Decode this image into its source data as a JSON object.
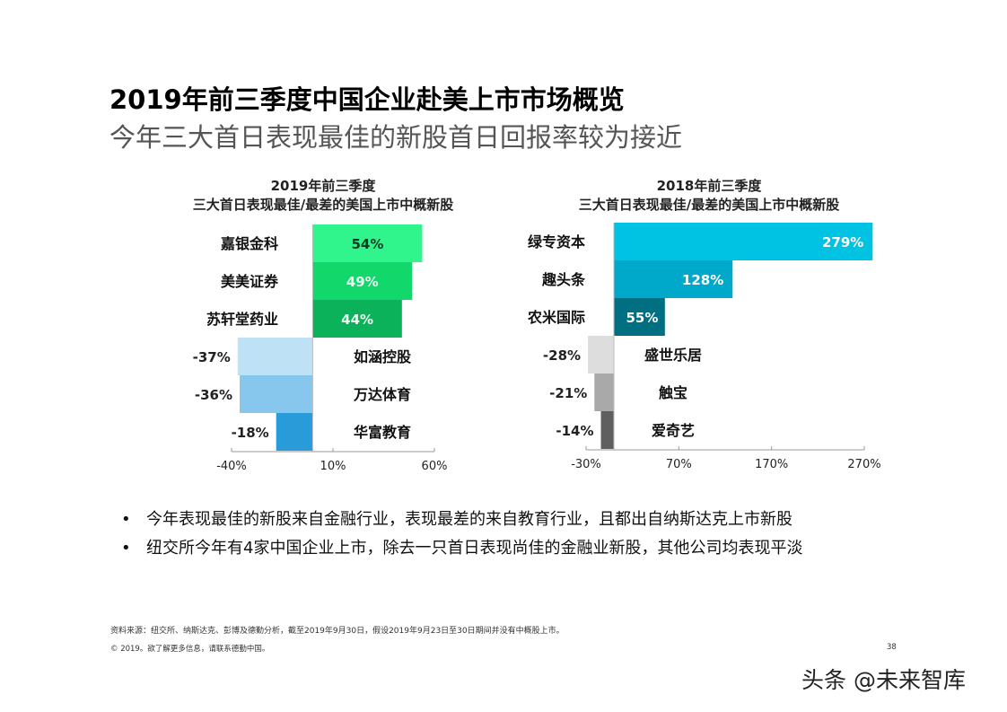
{
  "title": "2019年前三季度中国企业赴美上市市场概览",
  "subtitle": "今年三大首日表现最佳的新股首日回报率较为接近",
  "chart_data": [
    {
      "type": "bar",
      "orientation": "horizontal",
      "title_line1": "2019年前三季度",
      "title_line2": "三大首日表现最佳/最差的美国上市中概新股",
      "categories": [
        "嘉银金科",
        "美美证券",
        "苏轩堂药业",
        "如涵控股",
        "万达体育",
        "华富教育"
      ],
      "values": [
        54,
        49,
        44,
        -37,
        -36,
        -18
      ],
      "value_labels": [
        "54%",
        "49%",
        "44%",
        "-37%",
        "-36%",
        "-18%"
      ],
      "colors": [
        "#2ff58c",
        "#12d86c",
        "#0bb25a",
        "#bfe1f5",
        "#87c7ee",
        "#2a9bd9"
      ],
      "value_label_colors": [
        "#0a3a1f",
        "#e8fff0",
        "#e8fff0",
        "#222222",
        "#222222",
        "#222222"
      ],
      "xlim": [
        -40,
        60
      ],
      "ticks": [
        -40,
        10,
        60
      ],
      "tick_labels": [
        "-40%",
        "10%",
        "60%"
      ],
      "grid": false
    },
    {
      "type": "bar",
      "orientation": "horizontal",
      "title_line1": "2018年前三季度",
      "title_line2": "三大首日表现最佳/最差的美国上市中概新股",
      "categories": [
        "绿专资本",
        "趣头条",
        "农米国际",
        "盛世乐居",
        "触宝",
        "爱奇艺"
      ],
      "values": [
        279,
        128,
        55,
        -28,
        -21,
        -14
      ],
      "value_labels": [
        "279%",
        "128%",
        "55%",
        "-28%",
        "-21%",
        "-14%"
      ],
      "colors": [
        "#00c2e2",
        "#00a9c9",
        "#006f82",
        "#dddddd",
        "#a9a9a9",
        "#5f5f5f"
      ],
      "value_label_colors": [
        "#ffffff",
        "#ffffff",
        "#ffffff",
        "#222222",
        "#222222",
        "#222222"
      ],
      "xlim": [
        -30,
        270
      ],
      "ticks": [
        -30,
        70,
        170,
        270
      ],
      "tick_labels": [
        "-30%",
        "70%",
        "170%",
        "270%"
      ],
      "grid": false
    }
  ],
  "bullets": [
    {
      "symbol": "•",
      "text": "今年表现最佳的新股来自金融行业，表现最差的来自教育行业，且都出自纳斯达克上市新股"
    },
    {
      "symbol": "•",
      "text": "纽交所今年有4家中国企业上市，除去一只首日表现尚佳的金融业新股，其他公司均表现平淡"
    }
  ],
  "source": "资料来源：纽交所、纳斯达克、彭博及德勤分析，截至2019年9月30日，假设2019年9月23日至30日期间并没有中概股上市。",
  "copyright": "© 2019。欲了解更多信息，请联系德勤中国。",
  "page_number": "38",
  "watermark": "头条 @未来智库"
}
